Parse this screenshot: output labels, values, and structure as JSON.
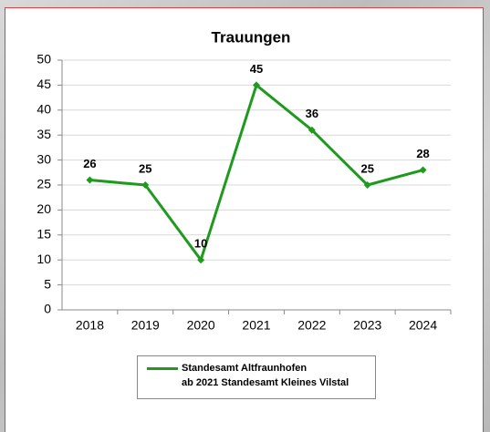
{
  "chart_data": {
    "type": "line",
    "title": "Trauungen",
    "categories": [
      "2018",
      "2019",
      "2020",
      "2021",
      "2022",
      "2023",
      "2024"
    ],
    "series": [
      {
        "name": "Standesamt Altfraunhofen\nab 2021 Standesamt Kleines Vilstal",
        "color": "#1f9a1f",
        "values": [
          26,
          25,
          10,
          45,
          36,
          25,
          28
        ]
      }
    ],
    "ylim": [
      0,
      50
    ],
    "yticks": [
      0,
      5,
      10,
      15,
      20,
      25,
      30,
      35,
      40,
      45,
      50
    ],
    "grid": true,
    "legend": "bottom"
  }
}
